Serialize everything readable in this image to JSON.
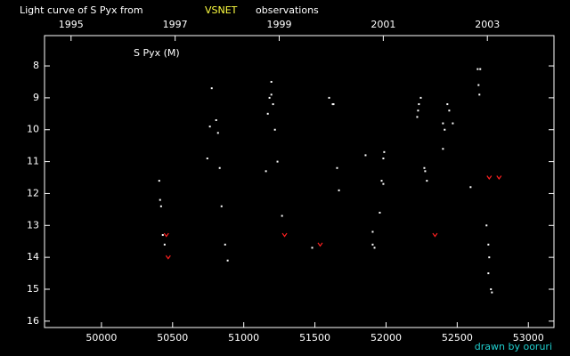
{
  "chart_data": {
    "type": "scatter",
    "title": "Light curve of S Pyx from",
    "title_source": "VSNET",
    "title_suffix": "observations",
    "star_label": "S Pyx (M)",
    "credit": "drawn by ooruri",
    "xlim": [
      49600,
      53180
    ],
    "xticks": [
      50000,
      50500,
      51000,
      51500,
      52000,
      52500,
      53000
    ],
    "x2lim": [
      1994.49,
      2004.28
    ],
    "x2ticks": [
      1995,
      1997,
      1999,
      2001,
      2003
    ],
    "ylim": [
      16.2,
      7.05
    ],
    "yticks": [
      8,
      9,
      10,
      11,
      12,
      13,
      14,
      15,
      16
    ],
    "series": [
      {
        "color": "#ffffff",
        "marker": "dot",
        "x": [
          50406,
          50412,
          50419,
          50431,
          50444,
          50775,
          50762,
          50806,
          50819,
          50744,
          50831,
          50844,
          50869,
          50887,
          51194,
          51181,
          51194,
          51206,
          51169,
          51219,
          51237,
          51156,
          51269,
          51481,
          51600,
          51625,
          51631,
          51656,
          51669,
          51856,
          51987,
          51981,
          51969,
          51981,
          51956,
          51906,
          51906,
          51919,
          52244,
          52231,
          52225,
          52219,
          52269,
          52275,
          52287,
          52400,
          52412,
          52431,
          52444,
          52469,
          52400,
          52594,
          52644,
          52662,
          52650,
          52656,
          52706,
          52719,
          52725,
          52719,
          52737,
          52744
        ],
        "values": [
          11.6,
          12.2,
          12.4,
          13.3,
          13.6,
          8.7,
          9.9,
          9.7,
          10.1,
          10.9,
          11.2,
          12.4,
          13.6,
          14.1,
          8.5,
          9.0,
          8.9,
          9.2,
          9.5,
          10.0,
          11.0,
          11.3,
          12.7,
          13.7,
          9.0,
          9.2,
          9.2,
          11.2,
          11.9,
          10.8,
          10.7,
          10.9,
          11.6,
          11.7,
          12.6,
          13.2,
          13.6,
          13.7,
          9.0,
          9.2,
          9.4,
          9.6,
          11.2,
          11.3,
          11.6,
          9.8,
          10.0,
          9.2,
          9.4,
          9.8,
          10.6,
          11.8,
          8.1,
          8.1,
          8.6,
          8.9,
          13.0,
          13.6,
          14.0,
          14.5,
          15.0,
          15.1
        ]
      },
      {
        "color": "#ff2020",
        "marker": "v",
        "x": [
          50456,
          50469,
          51287,
          51537,
          52344,
          52725,
          52794
        ],
        "values": [
          13.3,
          14.0,
          13.3,
          13.6,
          13.3,
          11.5,
          11.5
        ]
      }
    ]
  }
}
